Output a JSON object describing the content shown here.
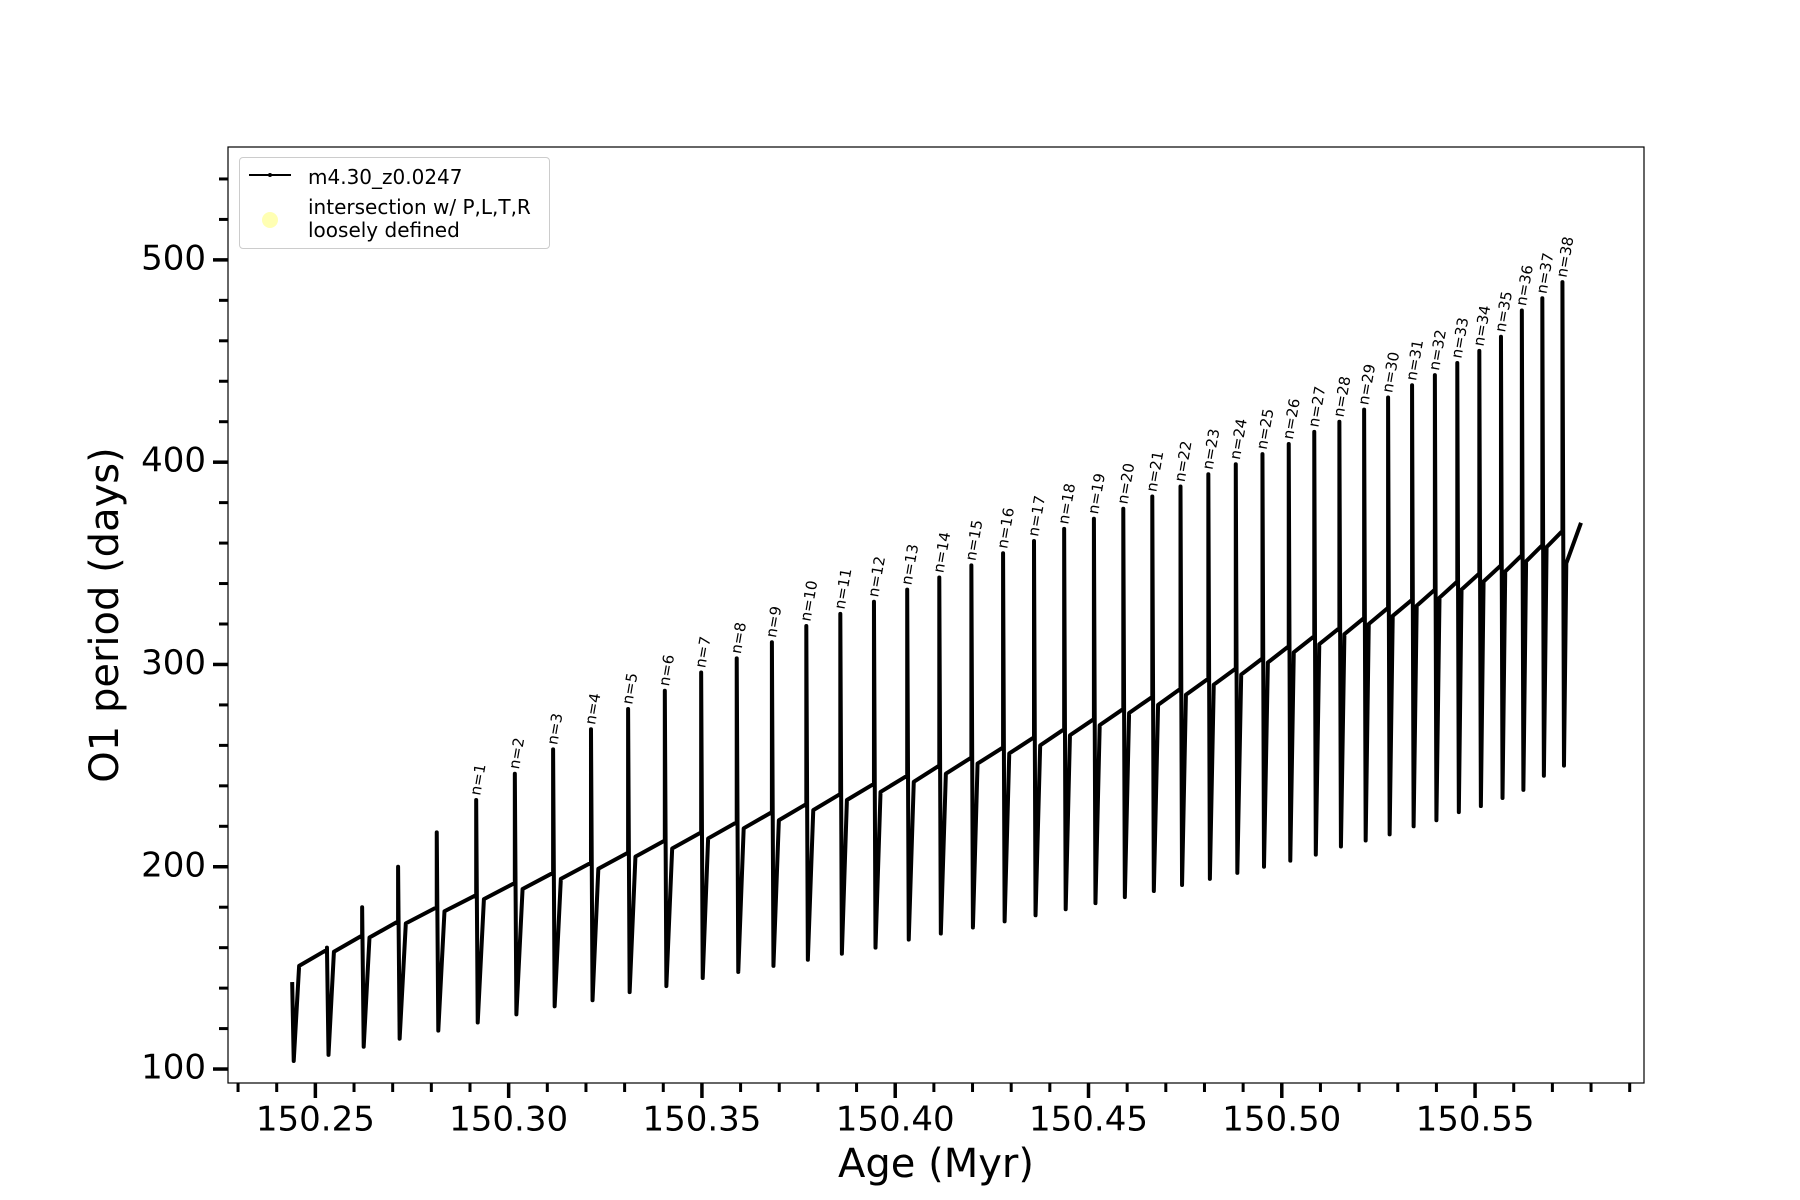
{
  "chart_data": {
    "type": "line",
    "xlabel": "Age (Myr)",
    "ylabel": "O1 period (days)",
    "xlim": [
      150.2274,
      150.5937
    ],
    "ylim": [
      93.1,
      555.8
    ],
    "xticks": [
      150.25,
      {
        "value": 150.3,
        "label": "150.30"
      },
      150.35,
      {
        "value": 150.4,
        "label": "150.40"
      },
      150.45,
      {
        "value": 150.5,
        "label": "150.50"
      },
      150.55
    ],
    "xminorticks": [
      150.23,
      150.24,
      150.26,
      150.27,
      150.28,
      150.29,
      150.31,
      150.32,
      150.33,
      150.34,
      150.36,
      150.37,
      150.38,
      150.39,
      150.41,
      150.42,
      150.43,
      150.44,
      150.46,
      150.47,
      150.48,
      150.49,
      150.51,
      150.52,
      150.53,
      150.54,
      150.56,
      150.57,
      150.58,
      150.59
    ],
    "yticks": [
      100,
      200,
      300,
      400,
      500
    ],
    "yminorticks": [
      120,
      140,
      160,
      180,
      220,
      240,
      260,
      280,
      320,
      340,
      360,
      380,
      420,
      440,
      460,
      480,
      520,
      540
    ],
    "legend": "upper left",
    "series": [
      {
        "name": "m4.30_z0.0247",
        "color": "#000000",
        "x": [
          150.244,
          150.2444,
          150.2458,
          150.253,
          150.253,
          150.2534,
          150.2548,
          150.2621,
          150.2621,
          150.2625,
          150.264,
          150.2714,
          150.2714,
          150.2718,
          150.2734,
          150.2814,
          150.2814,
          150.2818,
          150.2834,
          150.2916,
          150.2916,
          150.292,
          150.2936,
          150.3016,
          150.3016,
          150.302,
          150.3036,
          150.3115,
          150.3115,
          150.3119,
          150.3135,
          150.3213,
          150.3213,
          150.3217,
          150.3232,
          150.3309,
          150.3309,
          150.3313,
          150.3328,
          150.3404,
          150.3404,
          150.3408,
          150.3423,
          150.3498,
          150.3498,
          150.3502,
          150.3516,
          150.359,
          150.359,
          150.3594,
          150.3608,
          150.3681,
          150.3681,
          150.3685,
          150.3699,
          150.377,
          150.377,
          150.3774,
          150.3788,
          150.3858,
          150.3858,
          150.3862,
          150.3875,
          150.3945,
          150.3945,
          150.3949,
          150.3962,
          150.4031,
          150.4031,
          150.4035,
          150.4048,
          150.4114,
          150.4114,
          150.4118,
          150.4131,
          150.4197,
          150.4197,
          150.4201,
          150.4213,
          150.4279,
          150.4279,
          150.4283,
          150.4295,
          150.4359,
          150.4359,
          150.4363,
          150.4375,
          150.4437,
          150.4437,
          150.4441,
          150.4452,
          150.4514,
          150.4514,
          150.4518,
          150.4529,
          150.459,
          150.459,
          150.4594,
          150.4605,
          150.4665,
          150.4665,
          150.4669,
          150.468,
          150.4738,
          150.4738,
          150.4742,
          150.4752,
          150.481,
          150.481,
          150.4814,
          150.4824,
          150.4881,
          150.4881,
          150.4885,
          150.4895,
          150.495,
          150.495,
          150.4954,
          150.4964,
          150.5018,
          150.5018,
          150.5022,
          150.5031,
          150.5084,
          150.5084,
          150.5088,
          150.5097,
          150.5149,
          150.5149,
          150.5153,
          150.5162,
          150.5213,
          150.5213,
          150.5217,
          150.5225,
          150.5275,
          150.5275,
          150.5279,
          150.5287,
          150.5337,
          150.5337,
          150.5341,
          150.5349,
          150.5396,
          150.5396,
          150.54,
          150.5408,
          150.5454,
          150.5454,
          150.5458,
          150.5465,
          150.5511,
          150.5511,
          150.5515,
          150.5522,
          150.5567,
          150.5567,
          150.5571,
          150.5578,
          150.5621,
          150.5621,
          150.5625,
          150.5632,
          150.5674,
          150.5674,
          150.5678,
          150.5685,
          150.5726,
          150.5726,
          150.573,
          150.5736,
          150.5774
        ],
        "values": [
          143,
          104,
          151,
          159,
          160,
          107,
          158,
          166,
          180,
          111,
          165,
          173,
          200,
          115,
          172,
          180,
          217,
          119,
          178,
          186,
          233,
          123,
          184,
          192,
          246,
          127,
          189,
          197,
          258,
          131,
          194,
          202,
          268,
          134,
          199,
          207,
          278,
          138,
          205,
          213,
          287,
          141,
          209,
          217,
          296,
          145,
          214,
          222,
          303,
          148,
          219,
          227,
          311,
          151,
          223,
          231,
          319,
          154,
          228,
          236,
          325,
          157,
          233,
          241,
          331,
          160,
          237,
          245,
          337,
          164,
          242,
          250,
          343,
          167,
          246,
          254,
          349,
          170,
          251,
          259,
          355,
          173,
          256,
          264,
          361,
          176,
          260,
          268,
          367,
          179,
          265,
          273,
          372,
          182,
          270,
          278,
          377,
          185,
          276,
          284,
          383,
          188,
          280,
          288,
          388,
          191,
          285,
          293,
          394,
          194,
          290,
          298,
          399,
          197,
          295,
          303,
          404,
          200,
          301,
          309,
          409,
          203,
          306,
          314,
          415,
          206,
          310,
          318,
          420,
          210,
          315,
          323,
          426,
          213,
          320,
          328,
          432,
          216,
          324,
          332,
          438,
          220,
          329,
          337,
          443,
          223,
          333,
          341,
          449,
          227,
          337,
          345,
          455,
          230,
          341,
          349,
          462,
          234,
          346,
          354,
          475,
          238,
          351,
          359,
          481,
          245,
          358,
          366,
          489,
          250,
          350,
          370
        ]
      },
      {
        "name": "intersection w/ P,L,T,R\nloosely defined",
        "color": "#ffffb3",
        "x": [],
        "values": []
      }
    ],
    "annotations": [
      {
        "text": "n=1",
        "x": 150.2916,
        "y": 233
      },
      {
        "text": "n=2",
        "x": 150.3016,
        "y": 246
      },
      {
        "text": "n=3",
        "x": 150.3115,
        "y": 258
      },
      {
        "text": "n=4",
        "x": 150.3213,
        "y": 268
      },
      {
        "text": "n=5",
        "x": 150.3309,
        "y": 278
      },
      {
        "text": "n=6",
        "x": 150.3404,
        "y": 287
      },
      {
        "text": "n=7",
        "x": 150.3498,
        "y": 296
      },
      {
        "text": "n=8",
        "x": 150.359,
        "y": 303
      },
      {
        "text": "n=9",
        "x": 150.3681,
        "y": 311
      },
      {
        "text": "n=10",
        "x": 150.377,
        "y": 319
      },
      {
        "text": "n=11",
        "x": 150.3858,
        "y": 325
      },
      {
        "text": "n=12",
        "x": 150.3945,
        "y": 331
      },
      {
        "text": "n=13",
        "x": 150.4031,
        "y": 337
      },
      {
        "text": "n=14",
        "x": 150.4114,
        "y": 343
      },
      {
        "text": "n=15",
        "x": 150.4197,
        "y": 349
      },
      {
        "text": "n=16",
        "x": 150.4279,
        "y": 355
      },
      {
        "text": "n=17",
        "x": 150.4359,
        "y": 361
      },
      {
        "text": "n=18",
        "x": 150.4437,
        "y": 367
      },
      {
        "text": "n=19",
        "x": 150.4514,
        "y": 372
      },
      {
        "text": "n=20",
        "x": 150.459,
        "y": 377
      },
      {
        "text": "n=21",
        "x": 150.4665,
        "y": 383
      },
      {
        "text": "n=22",
        "x": 150.4738,
        "y": 388
      },
      {
        "text": "n=23",
        "x": 150.481,
        "y": 394
      },
      {
        "text": "n=24",
        "x": 150.4881,
        "y": 399
      },
      {
        "text": "n=25",
        "x": 150.495,
        "y": 404
      },
      {
        "text": "n=26",
        "x": 150.5018,
        "y": 409
      },
      {
        "text": "n=27",
        "x": 150.5084,
        "y": 415
      },
      {
        "text": "n=28",
        "x": 150.5149,
        "y": 420
      },
      {
        "text": "n=29",
        "x": 150.5213,
        "y": 426
      },
      {
        "text": "n=30",
        "x": 150.5275,
        "y": 432
      },
      {
        "text": "n=31",
        "x": 150.5337,
        "y": 438
      },
      {
        "text": "n=32",
        "x": 150.5396,
        "y": 443
      },
      {
        "text": "n=33",
        "x": 150.5454,
        "y": 449
      },
      {
        "text": "n=34",
        "x": 150.5511,
        "y": 455
      },
      {
        "text": "n=35",
        "x": 150.5567,
        "y": 462
      },
      {
        "text": "n=36",
        "x": 150.5621,
        "y": 475
      },
      {
        "text": "n=37",
        "x": 150.5674,
        "y": 481
      },
      {
        "text": "n=38",
        "x": 150.5726,
        "y": 489
      }
    ]
  }
}
